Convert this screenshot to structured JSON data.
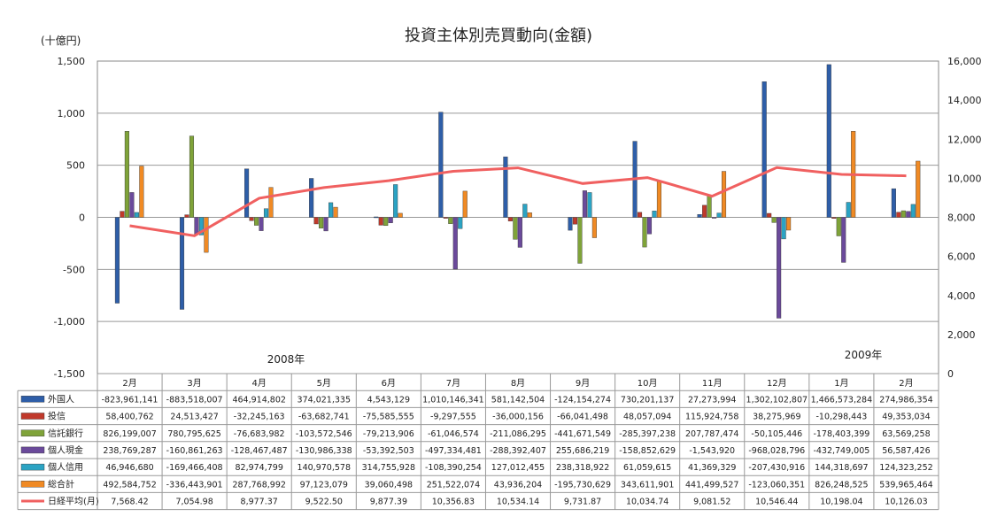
{
  "chart_data": {
    "type": "bar",
    "title": "投資主体別売買動向(金額)",
    "y_unit_label": "(十億円)",
    "ylim": [
      -1500,
      1500
    ],
    "y_ticks": [
      "1,500",
      "1,000",
      "500",
      "0",
      "-500",
      "-1,000",
      "-1,500"
    ],
    "y2lim": [
      0,
      16000
    ],
    "y2_ticks": [
      "16,000",
      "14,000",
      "12,000",
      "10,000",
      "8,000",
      "6,000",
      "4,000",
      "2,000",
      "0"
    ],
    "year_labels": [
      "2008年",
      "2009年"
    ],
    "categories": [
      "2月",
      "3月",
      "4月",
      "5月",
      "6月",
      "7月",
      "8月",
      "9月",
      "10月",
      "11月",
      "12月",
      "1月",
      "2月"
    ],
    "series": [
      {
        "name": "外国人",
        "color": "#2E5EA8",
        "values": [
          -823961141,
          -883518007,
          464914802,
          374021335,
          4543129,
          1010146341,
          581142504,
          -124154274,
          730201137,
          27273994,
          1302102807,
          1466573284,
          274986354
        ],
        "labels": [
          "-823,961,141",
          "-883,518,007",
          "464,914,802",
          "374,021,335",
          "4,543,129",
          "1,010,146,341",
          "581,142,504",
          "-124,154,274",
          "730,201,137",
          "27,273,994",
          "1,302,102,807",
          "1,466,573,284",
          "274,986,354"
        ]
      },
      {
        "name": "投信",
        "color": "#C0392B",
        "values": [
          58400762,
          24513427,
          -32245163,
          -63682741,
          -75585555,
          -9297555,
          -36000156,
          -66041498,
          48057094,
          115924758,
          38275969,
          -10298443,
          49353034
        ],
        "labels": [
          "58,400,762",
          "24,513,427",
          "-32,245,163",
          "-63,682,741",
          "-75,585,555",
          "-9,297,555",
          "-36,000,156",
          "-66,041,498",
          "48,057,094",
          "115,924,758",
          "38,275,969",
          "-10,298,443",
          "49,353,034"
        ]
      },
      {
        "name": "信託銀行",
        "color": "#7FA339",
        "values": [
          826199007,
          780795625,
          -76683982,
          -103572546,
          -79213906,
          -61046574,
          -211086295,
          -441671549,
          -285397238,
          207787474,
          -50105446,
          -178403399,
          63569258
        ],
        "labels": [
          "826,199,007",
          "780,795,625",
          "-76,683,982",
          "-103,572,546",
          "-79,213,906",
          "-61,046,574",
          "-211,086,295",
          "-441,671,549",
          "-285,397,238",
          "207,787,474",
          "-50,105,446",
          "-178,403,399",
          "63,569,258"
        ]
      },
      {
        "name": "個人現金",
        "color": "#6B4A9B",
        "values": [
          238769287,
          -160861263,
          -128467487,
          -130986338,
          -53392503,
          -497334481,
          -288392407,
          255686219,
          -158852629,
          -1543920,
          -968028796,
          -432749005,
          56587426
        ],
        "labels": [
          "238,769,287",
          "-160,861,263",
          "-128,467,487",
          "-130,986,338",
          "-53,392,503",
          "-497,334,481",
          "-288,392,407",
          "255,686,219",
          "-158,852,629",
          "-1,543,920",
          "-968,028,796",
          "-432,749,005",
          "56,587,426"
        ]
      },
      {
        "name": "個人信用",
        "color": "#2BA3C3",
        "values": [
          46946680,
          -169466408,
          82974799,
          140970578,
          314755928,
          -108390254,
          127012455,
          238318922,
          61059615,
          41369329,
          -207430916,
          144318697,
          124323252
        ],
        "labels": [
          "46,946,680",
          "-169,466,408",
          "82,974,799",
          "140,970,578",
          "314,755,928",
          "-108,390,254",
          "127,012,455",
          "238,318,922",
          "61,059,615",
          "41,369,329",
          "-207,430,916",
          "144,318,697",
          "124,323,252"
        ]
      },
      {
        "name": "総合計",
        "color": "#F08A24",
        "values": [
          492584752,
          -336443901,
          287768992,
          97123079,
          39060498,
          251522074,
          43936204,
          -195730629,
          343611901,
          441499527,
          -123060351,
          826248525,
          539965464
        ],
        "labels": [
          "492,584,752",
          "-336,443,901",
          "287,768,992",
          "97,123,079",
          "39,060,498",
          "251,522,074",
          "43,936,204",
          "-195,730,629",
          "343,611,901",
          "441,499,527",
          "-123,060,351",
          "826,248,525",
          "539,965,464"
        ]
      }
    ],
    "line_series": {
      "name": "日経平均(月)",
      "color": "#F06060",
      "axis": "right",
      "values": [
        7568.42,
        7054.98,
        8977.37,
        9522.5,
        9877.39,
        10356.83,
        10534.14,
        9731.87,
        10034.74,
        9081.52,
        10546.44,
        10198.04,
        10126.03
      ],
      "labels": [
        "7,568.42",
        "7,054.98",
        "8,977.37",
        "9,522.50",
        "9,877.39",
        "10,356.83",
        "10,534.14",
        "9,731.87",
        "10,034.74",
        "9,081.52",
        "10,546.44",
        "10,198.04",
        "10,126.03"
      ]
    },
    "grid": true,
    "legend": "table-below"
  }
}
